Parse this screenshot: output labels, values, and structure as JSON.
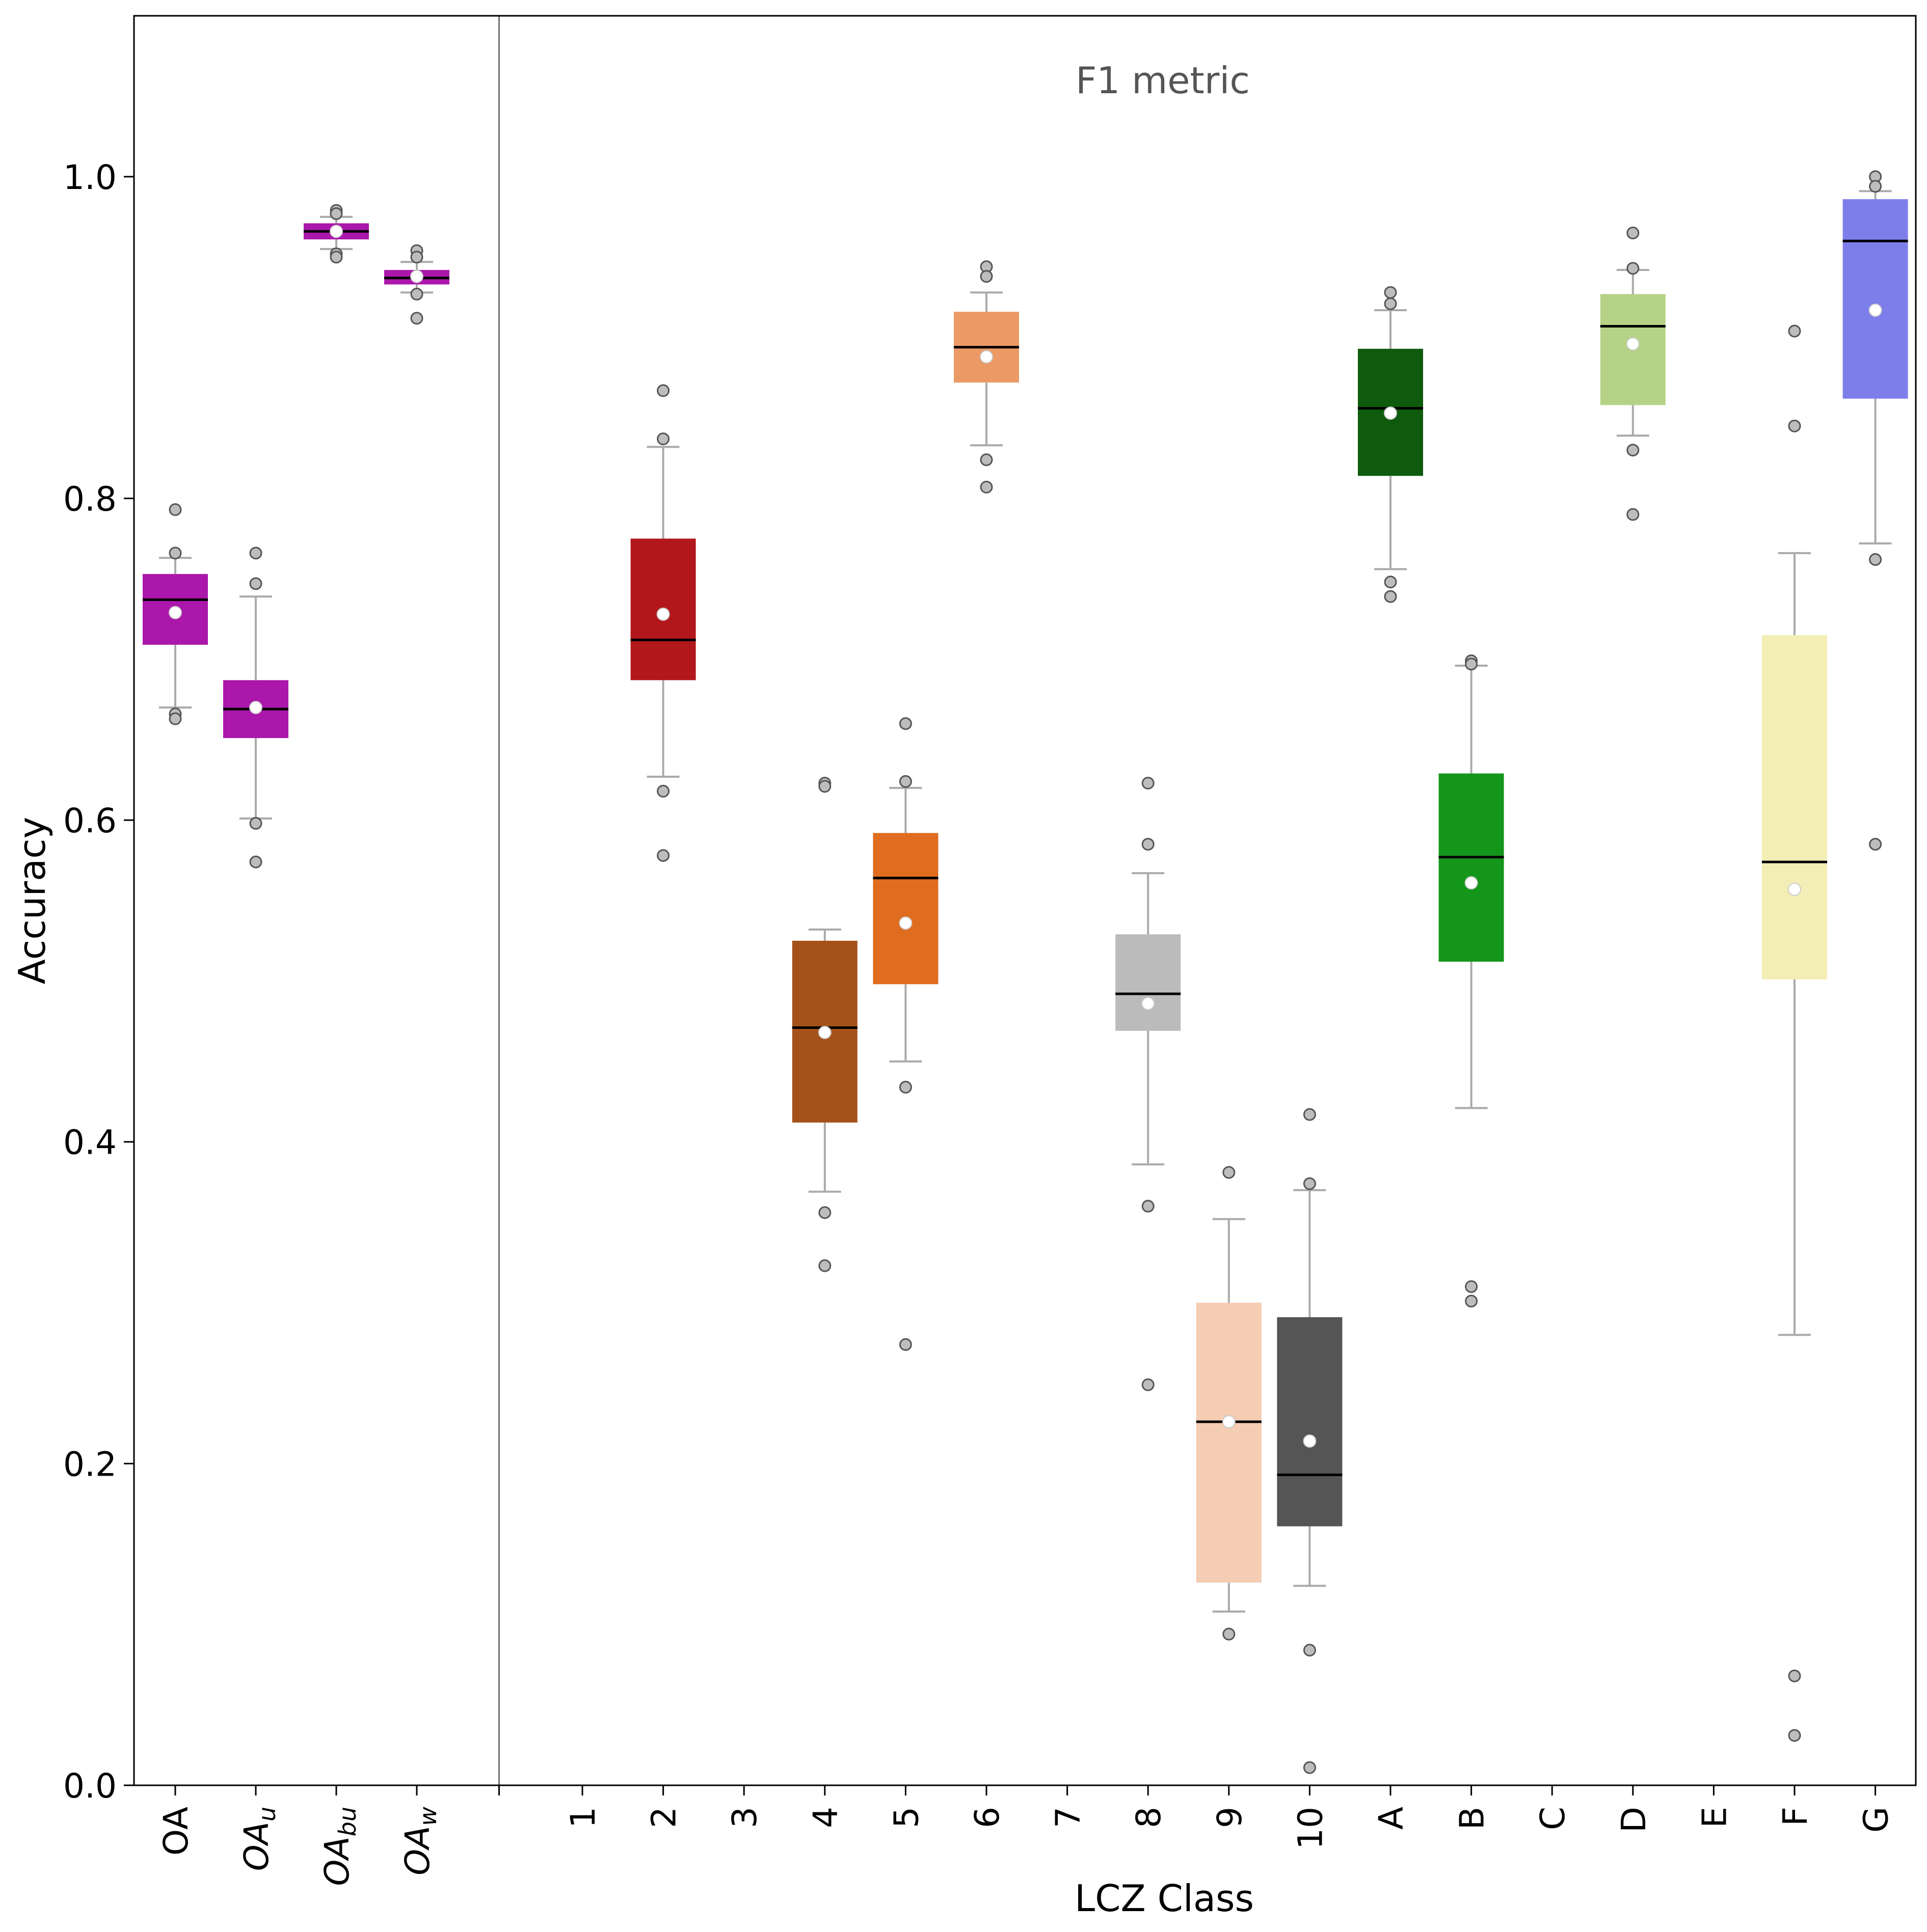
{
  "chart_data": {
    "type": "box",
    "title": "F1 metric",
    "xlabel": "LCZ Class",
    "ylabel": "Accuracy",
    "ylim": [
      0,
      1.1
    ],
    "yticks": [
      "0.0",
      "0.2",
      "0.4",
      "0.6",
      "0.8",
      "1.0"
    ],
    "grid": false,
    "separator_after": "OA_w",
    "boxes": [
      {
        "label": "OA",
        "sub": "",
        "color": "#AB17AB",
        "q1": 0.709,
        "median": 0.737,
        "q3": 0.753,
        "whisker_low": 0.67,
        "whisker_high": 0.763,
        "mean": 0.729,
        "outliers": [
          0.793,
          0.766,
          0.666,
          0.663
        ]
      },
      {
        "label": "OA",
        "sub": "u",
        "color": "#AB17AB",
        "q1": 0.651,
        "median": 0.669,
        "q3": 0.687,
        "whisker_low": 0.601,
        "whisker_high": 0.739,
        "mean": 0.67,
        "outliers": [
          0.766,
          0.747,
          0.598,
          0.574
        ]
      },
      {
        "label": "OA",
        "sub": "bu",
        "color": "#AB17AB",
        "q1": 0.961,
        "median": 0.966,
        "q3": 0.971,
        "whisker_low": 0.955,
        "whisker_high": 0.975,
        "mean": 0.966,
        "outliers": [
          0.979,
          0.977,
          0.952,
          0.95
        ]
      },
      {
        "label": "OA",
        "sub": "w",
        "color": "#AB17AB",
        "q1": 0.933,
        "median": 0.937,
        "q3": 0.942,
        "whisker_low": 0.928,
        "whisker_high": 0.947,
        "mean": 0.938,
        "outliers": [
          0.954,
          0.95,
          0.927,
          0.912
        ]
      },
      {
        "label": "1",
        "sub": "",
        "color": null
      },
      {
        "label": "2",
        "sub": "",
        "color": "#B2171C",
        "q1": 0.687,
        "median": 0.712,
        "q3": 0.775,
        "whisker_low": 0.627,
        "whisker_high": 0.832,
        "mean": 0.728,
        "outliers": [
          0.867,
          0.837,
          0.618,
          0.578
        ]
      },
      {
        "label": "3",
        "sub": "",
        "color": null
      },
      {
        "label": "4",
        "sub": "",
        "color": "#A5521A",
        "q1": 0.412,
        "median": 0.471,
        "q3": 0.525,
        "whisker_low": 0.369,
        "whisker_high": 0.532,
        "mean": 0.468,
        "outliers": [
          0.623,
          0.621,
          0.356,
          0.323
        ]
      },
      {
        "label": "5",
        "sub": "",
        "color": "#E06C1F",
        "q1": 0.498,
        "median": 0.564,
        "q3": 0.592,
        "whisker_low": 0.45,
        "whisker_high": 0.62,
        "mean": 0.536,
        "outliers": [
          0.66,
          0.624,
          0.434,
          0.274
        ]
      },
      {
        "label": "6",
        "sub": "",
        "color": "#EB9A66",
        "q1": 0.872,
        "median": 0.894,
        "q3": 0.916,
        "whisker_low": 0.833,
        "whisker_high": 0.928,
        "mean": 0.888,
        "outliers": [
          0.944,
          0.938,
          0.824,
          0.807
        ]
      },
      {
        "label": "7",
        "sub": "",
        "color": null
      },
      {
        "label": "8",
        "sub": "",
        "color": "#BBBBBB",
        "q1": 0.469,
        "median": 0.492,
        "q3": 0.529,
        "whisker_low": 0.386,
        "whisker_high": 0.567,
        "mean": 0.486,
        "outliers": [
          0.623,
          0.585,
          0.36,
          0.249
        ]
      },
      {
        "label": "9",
        "sub": "",
        "color": "#F4CDB3",
        "q1": 0.126,
        "median": 0.226,
        "q3": 0.3,
        "whisker_low": 0.108,
        "whisker_high": 0.352,
        "mean": 0.226,
        "outliers": [
          0.381,
          0.094
        ]
      },
      {
        "label": "10",
        "sub": "",
        "color": "#555555",
        "q1": 0.161,
        "median": 0.193,
        "q3": 0.291,
        "whisker_low": 0.124,
        "whisker_high": 0.37,
        "mean": 0.214,
        "outliers": [
          0.417,
          0.374,
          0.084,
          0.011
        ]
      },
      {
        "label": "A",
        "sub": "",
        "color": "#0E5B0E",
        "q1": 0.814,
        "median": 0.856,
        "q3": 0.893,
        "whisker_low": 0.756,
        "whisker_high": 0.917,
        "mean": 0.853,
        "outliers": [
          0.928,
          0.921,
          0.748,
          0.739
        ]
      },
      {
        "label": "B",
        "sub": "",
        "color": "#14961A",
        "q1": 0.512,
        "median": 0.577,
        "q3": 0.629,
        "whisker_low": 0.421,
        "whisker_high": 0.696,
        "mean": 0.561,
        "outliers": [
          0.699,
          0.697,
          0.31,
          0.301
        ]
      },
      {
        "label": "C",
        "sub": "",
        "color": null
      },
      {
        "label": "D",
        "sub": "",
        "color": "#B6D286",
        "q1": 0.858,
        "median": 0.907,
        "q3": 0.927,
        "whisker_low": 0.839,
        "whisker_high": 0.942,
        "mean": 0.896,
        "outliers": [
          0.965,
          0.943,
          0.83,
          0.79
        ]
      },
      {
        "label": "E",
        "sub": "",
        "color": null
      },
      {
        "label": "F",
        "sub": "",
        "color": "#F2EEB6",
        "q1": 0.501,
        "median": 0.574,
        "q3": 0.715,
        "whisker_low": 0.28,
        "whisker_high": 0.766,
        "mean": 0.557,
        "outliers": [
          0.904,
          0.845,
          0.068,
          0.031
        ]
      },
      {
        "label": "G",
        "sub": "",
        "color": "#7E7EEB",
        "q1": 0.862,
        "median": 0.96,
        "q3": 0.986,
        "whisker_low": 0.772,
        "whisker_high": 0.991,
        "mean": 0.917,
        "outliers": [
          1.0,
          0.994,
          0.762,
          0.585
        ]
      }
    ]
  }
}
